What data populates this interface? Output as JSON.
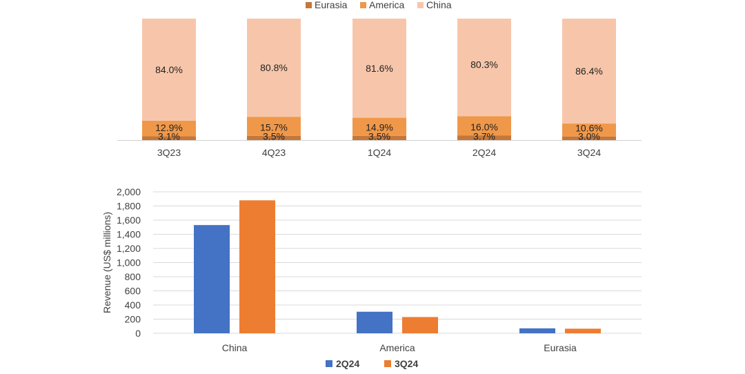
{
  "chart_data": [
    {
      "type": "bar",
      "stacked": true,
      "title": "",
      "categories": [
        "3Q23",
        "4Q23",
        "1Q24",
        "2Q24",
        "3Q24"
      ],
      "series": [
        {
          "name": "Eurasia",
          "color": "#c5773a",
          "values": [
            3.1,
            3.5,
            3.5,
            3.7,
            3.0
          ],
          "labels": [
            "3.1%",
            "3.5%",
            "3.5%",
            "3.7%",
            "3.0%"
          ]
        },
        {
          "name": "America",
          "color": "#f0984a",
          "values": [
            12.9,
            15.7,
            14.9,
            16.0,
            10.6
          ],
          "labels": [
            "12.9%",
            "15.7%",
            "14.9%",
            "16.0%",
            "10.6%"
          ]
        },
        {
          "name": "China",
          "color": "#f7c6aa",
          "values": [
            84.0,
            80.8,
            81.6,
            80.3,
            86.4
          ],
          "labels": [
            "84.0%",
            "80.8%",
            "81.6%",
            "80.3%",
            "86.4%"
          ]
        }
      ],
      "legend": "top",
      "ylim": [
        0,
        100
      ]
    },
    {
      "type": "bar",
      "title": "",
      "categories": [
        "China",
        "America",
        "Eurasia"
      ],
      "series": [
        {
          "name": "2Q24",
          "color": "#4472c4",
          "values": [
            1530,
            305,
            70
          ]
        },
        {
          "name": "3Q24",
          "color": "#ed7d31",
          "values": [
            1880,
            230,
            65
          ]
        }
      ],
      "ylabel": "Revenue (US$  millions)",
      "ylim": [
        0,
        2000
      ],
      "yticks": [
        "0",
        "200",
        "400",
        "600",
        "800",
        "1,000",
        "1,200",
        "1,400",
        "1,600",
        "1,800",
        "2,000"
      ],
      "grid": true,
      "legend": "bottom"
    }
  ]
}
